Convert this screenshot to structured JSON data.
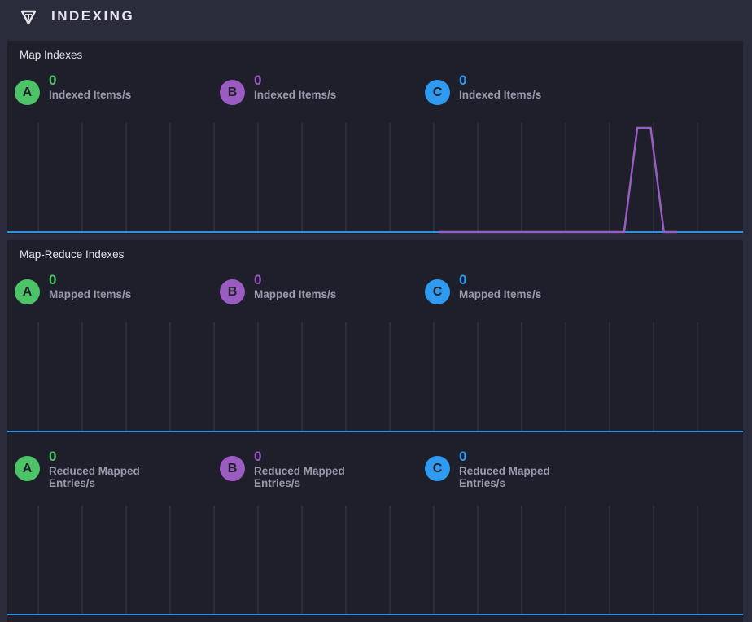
{
  "header": {
    "title": "INDEXING",
    "logo_icon": "logo-icon"
  },
  "colors": {
    "A": "#4cc366",
    "B": "#9a5cc0",
    "C": "#2f9bf0",
    "baseline": "#2f8fe0",
    "grid": "#3a3c4c"
  },
  "sections": [
    {
      "title": "Map Indexes",
      "metrics": [
        {
          "key": "A",
          "value": "0",
          "label": "Indexed Items/s"
        },
        {
          "key": "B",
          "value": "0",
          "label": "Indexed Items/s"
        },
        {
          "key": "C",
          "value": "0",
          "label": "Indexed Items/s"
        }
      ]
    },
    {
      "title": "Map-Reduce Indexes",
      "metrics": [
        {
          "key": "A",
          "value": "0",
          "label": "Mapped Items/s"
        },
        {
          "key": "B",
          "value": "0",
          "label": "Mapped Items/s"
        },
        {
          "key": "C",
          "value": "0",
          "label": "Mapped Items/s"
        }
      ]
    },
    {
      "title": "",
      "metrics": [
        {
          "key": "A",
          "value": "0",
          "label": "Reduced Mapped Entries/s"
        },
        {
          "key": "B",
          "value": "0",
          "label": "Reduced Mapped Entries/s"
        },
        {
          "key": "C",
          "value": "0",
          "label": "Reduced Mapped Entries/s"
        }
      ]
    }
  ],
  "chart_data": [
    {
      "type": "line",
      "series": [
        {
          "values": [
            0,
            0,
            0,
            0,
            0,
            0,
            0,
            0,
            0,
            0,
            0,
            0,
            0,
            0,
            0,
            1,
            1,
            0,
            0
          ]
        }
      ]
    },
    {
      "type": "line",
      "series": [
        {
          "values": []
        }
      ]
    },
    {
      "type": "line",
      "series": [
        {
          "values": []
        }
      ]
    }
  ]
}
